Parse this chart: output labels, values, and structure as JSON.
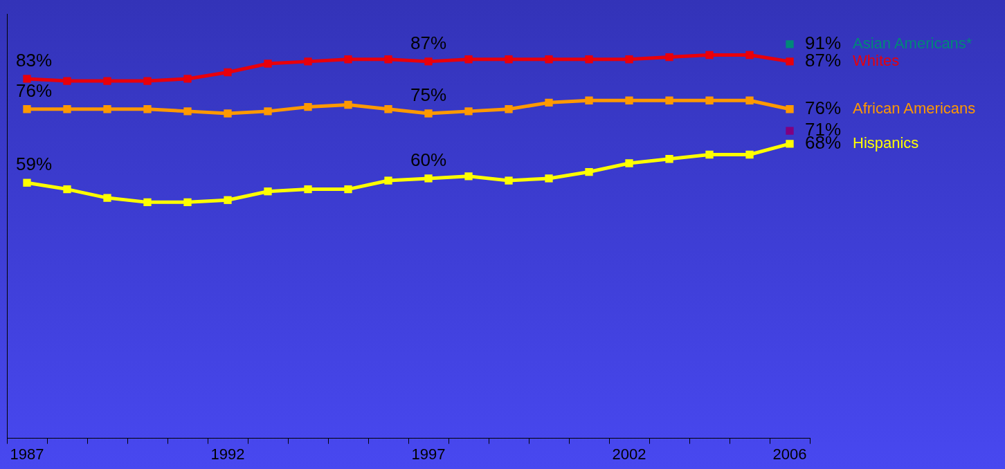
{
  "chart_data": {
    "type": "line",
    "categories": [
      "1987",
      null,
      null,
      null,
      null,
      "1992",
      null,
      null,
      null,
      null,
      "1997",
      null,
      null,
      null,
      null,
      "2002",
      null,
      null,
      null,
      "2006"
    ],
    "ylim": [
      0,
      98
    ],
    "tick_labels": "x",
    "grid": false,
    "marker": "square",
    "line_style": "solid",
    "series": [
      {
        "name": "Asian Americans*",
        "color": "#008878",
        "values": [
          null,
          null,
          null,
          null,
          null,
          null,
          null,
          null,
          null,
          null,
          null,
          null,
          null,
          null,
          null,
          null,
          null,
          null,
          null,
          91
        ],
        "value_labels": [
          null,
          null,
          null,
          null,
          null,
          null,
          null,
          null,
          null,
          null,
          null,
          null,
          null,
          null,
          null,
          null,
          null,
          null,
          null,
          "91%"
        ]
      },
      {
        "name": "Whites",
        "color": "#e8000b",
        "values": [
          83,
          82.5,
          82.5,
          82.5,
          83,
          84.5,
          86.5,
          87,
          87.5,
          87.5,
          87,
          87.5,
          87.5,
          87.5,
          87.5,
          87.5,
          88,
          88.5,
          88.5,
          87
        ],
        "value_labels": [
          "83%",
          null,
          null,
          null,
          null,
          null,
          null,
          null,
          null,
          null,
          "87%",
          null,
          null,
          null,
          null,
          null,
          null,
          null,
          null,
          "87%"
        ]
      },
      {
        "name": "African Americans",
        "color": "#ff9900",
        "values": [
          76,
          76,
          76,
          76,
          75.5,
          75,
          75.5,
          76.5,
          77,
          76,
          75,
          75.5,
          76,
          77.5,
          78,
          78,
          78,
          78,
          78,
          76
        ],
        "value_labels": [
          "76%",
          null,
          null,
          null,
          null,
          null,
          null,
          null,
          null,
          null,
          "75%",
          null,
          null,
          null,
          null,
          null,
          null,
          null,
          null,
          "76%"
        ]
      },
      {
        "color": "#800080",
        "values": [
          null,
          null,
          null,
          null,
          null,
          null,
          null,
          null,
          null,
          null,
          null,
          null,
          null,
          null,
          null,
          null,
          null,
          null,
          null,
          71
        ],
        "value_labels": [
          null,
          null,
          null,
          null,
          null,
          null,
          null,
          null,
          null,
          null,
          null,
          null,
          null,
          null,
          null,
          null,
          null,
          null,
          null,
          "71%"
        ]
      },
      {
        "name": "Hispanics",
        "color": "#ffff00",
        "values": [
          59,
          57.5,
          55.5,
          54.5,
          54.5,
          55,
          57,
          57.5,
          57.5,
          59.5,
          60,
          60.5,
          59.5,
          60,
          61.5,
          63.5,
          64.5,
          65.5,
          65.5,
          68
        ],
        "value_labels": [
          "59%",
          null,
          null,
          null,
          null,
          null,
          null,
          null,
          null,
          null,
          "60%",
          null,
          null,
          null,
          null,
          null,
          null,
          null,
          null,
          "68%"
        ]
      }
    ]
  }
}
